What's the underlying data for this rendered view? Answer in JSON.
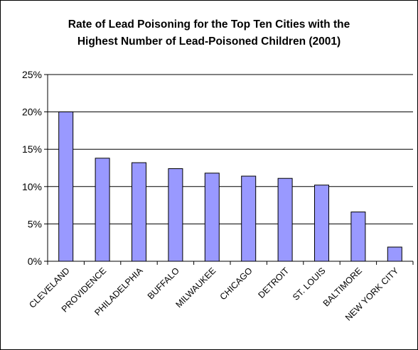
{
  "chart_data": {
    "type": "bar",
    "title_lines": [
      "Rate of Lead Poisoning for the Top Ten Cities with the",
      "Highest Number of Lead-Poisoned Children (2001)"
    ],
    "categories": [
      "CLEVELAND",
      "PROVIDENCE",
      "PHILADELPHIA",
      "BUFFALO",
      "MILWAUKEE",
      "CHICAGO",
      "DETROIT",
      "ST. LOUIS",
      "BALTIMORE",
      "NEW YORK CITY"
    ],
    "values": [
      20.0,
      13.8,
      13.2,
      12.4,
      11.8,
      11.4,
      11.1,
      10.2,
      6.6,
      1.9
    ],
    "ylim": [
      0,
      25
    ],
    "yticks": [
      0,
      5,
      10,
      15,
      20,
      25
    ],
    "ytick_labels": [
      "0%",
      "5%",
      "10%",
      "15%",
      "20%",
      "25%"
    ],
    "grid": true,
    "legend": "none",
    "bar_color": "#9999ff",
    "bar_edge_color": "#000000"
  }
}
